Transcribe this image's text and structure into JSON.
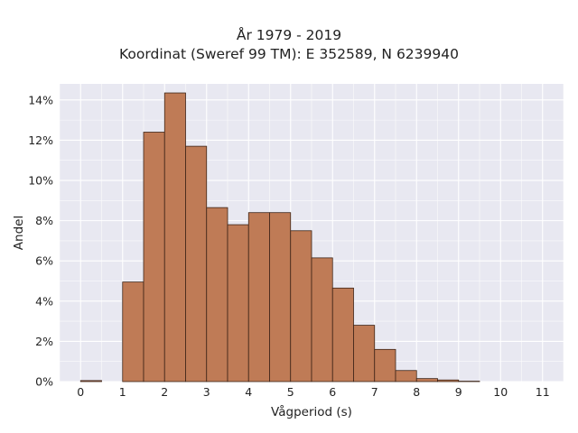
{
  "title": "År 1979 - 2019",
  "subtitle": "Koordinat (Sweref 99 TM): E 352589, N 6239940",
  "chart_data": {
    "type": "bar",
    "title": "År 1979 - 2019",
    "subtitle": "Koordinat (Sweref 99 TM): E 352589, N 6239940",
    "xlabel": "Vågperiod (s)",
    "ylabel": "Andel",
    "xlim": [
      -0.5,
      11.5
    ],
    "ylim": [
      0,
      14.8
    ],
    "bin_width": 0.5,
    "bin_starts": [
      0,
      0.5,
      1,
      1.5,
      2,
      2.5,
      3,
      3.5,
      4,
      4.5,
      5,
      5.5,
      6,
      6.5,
      7,
      7.5,
      8,
      8.5,
      9,
      9.5,
      10,
      10.5
    ],
    "values": [
      0.05,
      0,
      4.95,
      12.4,
      14.35,
      11.7,
      8.65,
      7.8,
      8.4,
      8.4,
      7.5,
      6.15,
      4.65,
      2.8,
      1.6,
      0.55,
      0.15,
      0.08,
      0.02,
      0,
      0,
      0
    ],
    "x_ticks": [
      0,
      1,
      2,
      3,
      4,
      5,
      6,
      7,
      8,
      9,
      10,
      11
    ],
    "x_tick_labels": [
      "0",
      "1",
      "2",
      "3",
      "4",
      "5",
      "6",
      "7",
      "8",
      "9",
      "10",
      "11"
    ],
    "y_ticks": [
      0,
      2,
      4,
      6,
      8,
      10,
      12,
      14
    ],
    "y_tick_labels": [
      "0%",
      "2%",
      "4%",
      "6%",
      "8%",
      "10%",
      "12%",
      "14%"
    ],
    "grid": true,
    "colors": {
      "bar_fill": "#bf7b56",
      "bar_stroke": "#3d2417",
      "plot_background": "#e8e8f1",
      "grid": "#ffffff"
    }
  }
}
